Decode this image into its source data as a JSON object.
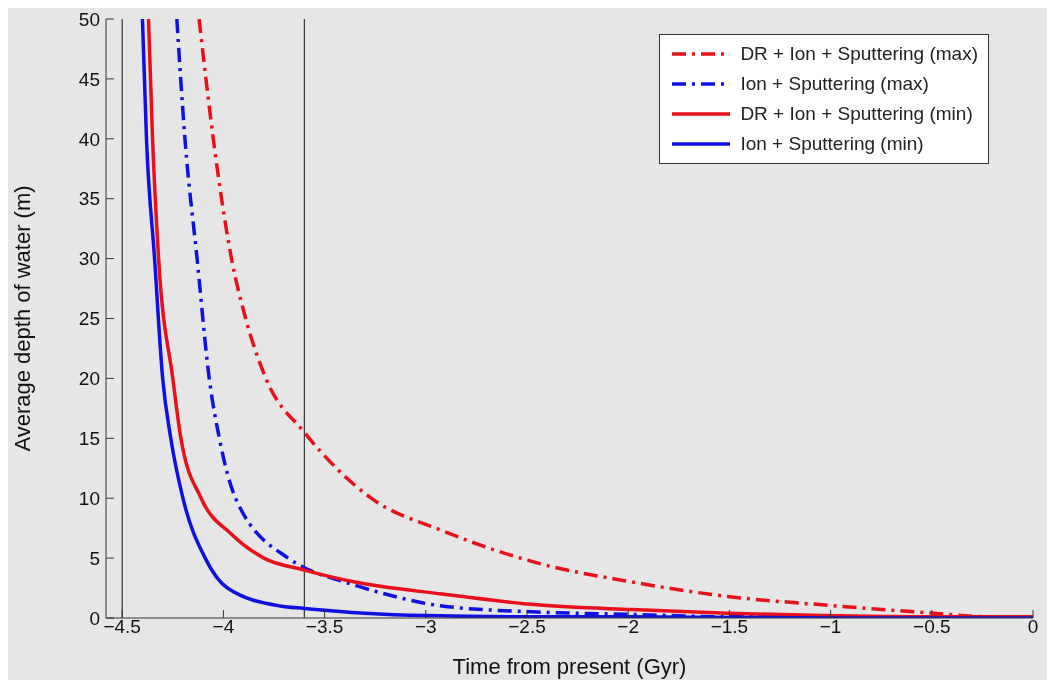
{
  "chart_data": {
    "type": "line",
    "xlabel": "Time from present (Gyr)",
    "ylabel": "Average depth of water (m)",
    "xlim": [
      -4.58,
      0
    ],
    "xticks": [
      -4.5,
      -4,
      -3.5,
      -3,
      -2.5,
      -2,
      -1.5,
      -1,
      -0.5,
      0
    ],
    "ylim": [
      0,
      50
    ],
    "yticks": [
      0,
      5,
      10,
      15,
      20,
      25,
      30,
      35,
      40,
      45,
      50
    ],
    "grid": false,
    "legend": "top right",
    "series": [
      {
        "name": "DR + Ion + Sputtering (max)",
        "color": "#e8101a",
        "line_style": "dashed",
        "x": [
          -4.12,
          -4.05,
          -3.96,
          -3.89,
          -3.79,
          -3.6,
          -3.27,
          -2.92,
          -2.45,
          -1.98,
          -1.51,
          -1.04,
          -0.57,
          -0.19,
          0
        ],
        "values": [
          50,
          40,
          30,
          25,
          20,
          15.5,
          10,
          7.3,
          4.6,
          3,
          1.8,
          1.1,
          0.5,
          0.1,
          0.1
        ]
      },
      {
        "name": "Ion + Sputtering (max)",
        "color": "#1010e0",
        "line_style": "dashed",
        "x": [
          -4.23,
          -4.19,
          -4.13,
          -4.07,
          -4.02,
          -3.94,
          -3.68,
          -3.6,
          -3.4,
          -3.2,
          -2.92,
          -2.45,
          -1.98,
          -1.5,
          -1,
          0
        ],
        "values": [
          50,
          40,
          30,
          20,
          15,
          10,
          5,
          4.2,
          3,
          2,
          1,
          0.5,
          0.3,
          0.1,
          0.1,
          0
        ]
      },
      {
        "name": "DR + Ion + Sputtering (min)",
        "color": "#e8101a",
        "line_style": "solid",
        "x": [
          -4.37,
          -4.35,
          -4.32,
          -4.25,
          -4.21,
          -4.11,
          -3.96,
          -3.8,
          -3.6,
          -3.35,
          -2.92,
          -2.45,
          -1.98,
          -1.51,
          -1.04,
          -0.5,
          0
        ],
        "values": [
          50,
          40,
          30,
          20,
          15,
          10,
          7,
          5,
          4,
          3,
          2,
          1.1,
          0.7,
          0.4,
          0.2,
          0.1,
          0.1
        ]
      },
      {
        "name": "Ion + Sputtering (min)",
        "color": "#1010e0",
        "line_style": "solid",
        "x": [
          -4.4,
          -4.38,
          -4.34,
          -4.3,
          -4.26,
          -4.2,
          -4.09,
          -3.98,
          -3.72,
          -3.6,
          -3.3,
          -3,
          -2.5,
          -2,
          -1,
          0
        ],
        "values": [
          50,
          40,
          30,
          20,
          15,
          10,
          5,
          2.5,
          1,
          0.8,
          0.4,
          0.2,
          0.1,
          0.1,
          0,
          0
        ]
      }
    ],
    "ref_lines": [
      {
        "axis": "x",
        "value": -4.5,
        "color": "#333333"
      },
      {
        "axis": "x",
        "value": -3.6,
        "color": "#333333"
      }
    ]
  }
}
